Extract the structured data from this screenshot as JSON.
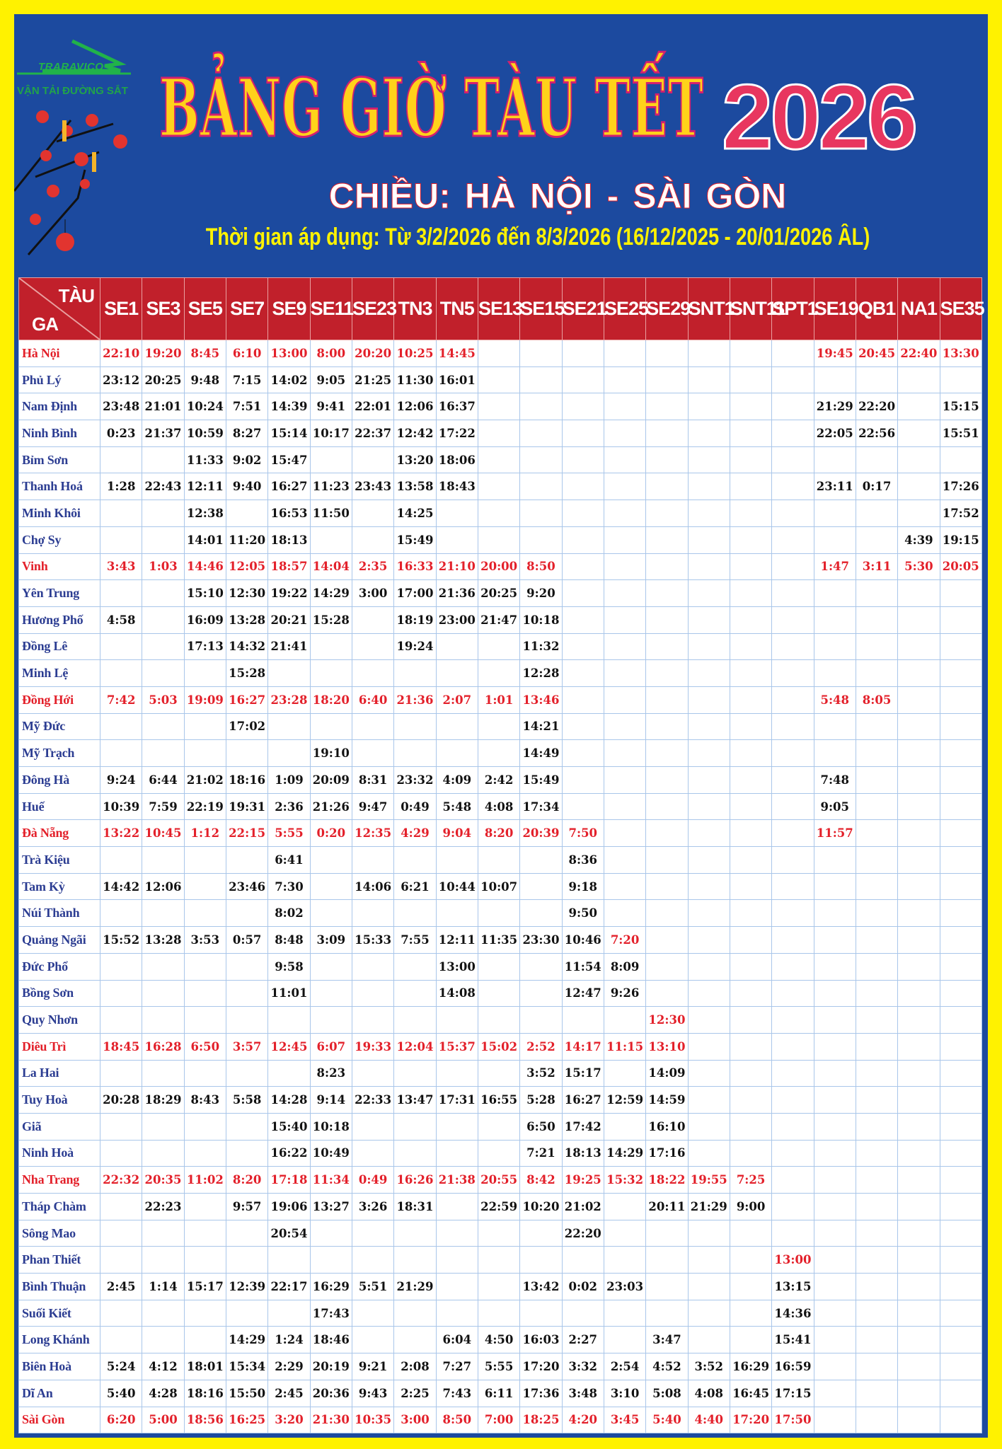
{
  "logo": {
    "brand": "TRARAVICO",
    "subtitle": "VẬN TẢI ĐƯỜNG SẮT"
  },
  "header": {
    "title": "BẢNG GIỜ TÀU TẾT",
    "year": "2026",
    "direction": "CHIỀU:  HÀ NỘI - SÀI GÒN",
    "period": "Thời gian áp dụng: Từ 3/2/2026  đến 8/3/2026 (16/12/2025 - 20/01/2026 ÂL)"
  },
  "colors": {
    "background": "#fff200",
    "panel": "#1c4a9f",
    "header_row": "#c1202b",
    "highlight_text": "#e3202a",
    "station_text": "#2c3d92"
  },
  "table": {
    "corner_top": "TÀU",
    "corner_bottom": "GA",
    "trains": [
      "SE1",
      "SE3",
      "SE5",
      "SE7",
      "SE9",
      "SE11",
      "SE23",
      "TN3",
      "TN5",
      "SE13",
      "SE15",
      "SE21",
      "SE25",
      "SE29",
      "SNT1",
      "SNT11",
      "SPT1",
      "SE19",
      "QB1",
      "NA1",
      "SE35"
    ],
    "stations": [
      {
        "name": "Hà Nội",
        "major": true,
        "times": [
          "22:10",
          "19:20",
          "8:45",
          "6:10",
          "13:00",
          "8:00",
          "20:20",
          "10:25",
          "14:45",
          "",
          "",
          "",
          "",
          "",
          "",
          "",
          "",
          "19:45",
          "20:45",
          "22:40",
          "13:30"
        ]
      },
      {
        "name": "Phủ Lý",
        "major": false,
        "times": [
          "23:12",
          "20:25",
          "9:48",
          "7:15",
          "14:02",
          "9:05",
          "21:25",
          "11:30",
          "16:01",
          "",
          "",
          "",
          "",
          "",
          "",
          "",
          "",
          "",
          "",
          "",
          ""
        ]
      },
      {
        "name": "Nam Định",
        "major": false,
        "times": [
          "23:48",
          "21:01",
          "10:24",
          "7:51",
          "14:39",
          "9:41",
          "22:01",
          "12:06",
          "16:37",
          "",
          "",
          "",
          "",
          "",
          "",
          "",
          "",
          "21:29",
          "22:20",
          "",
          "15:15"
        ]
      },
      {
        "name": "Ninh Bình",
        "major": false,
        "times": [
          "0:23",
          "21:37",
          "10:59",
          "8:27",
          "15:14",
          "10:17",
          "22:37",
          "12:42",
          "17:22",
          "",
          "",
          "",
          "",
          "",
          "",
          "",
          "",
          "22:05",
          "22:56",
          "",
          "15:51"
        ]
      },
      {
        "name": "Bỉm Sơn",
        "major": false,
        "times": [
          "",
          "",
          "11:33",
          "9:02",
          "15:47",
          "",
          "",
          "13:20",
          "18:06",
          "",
          "",
          "",
          "",
          "",
          "",
          "",
          "",
          "",
          "",
          "",
          ""
        ]
      },
      {
        "name": "Thanh Hoá",
        "major": false,
        "times": [
          "1:28",
          "22:43",
          "12:11",
          "9:40",
          "16:27",
          "11:23",
          "23:43",
          "13:58",
          "18:43",
          "",
          "",
          "",
          "",
          "",
          "",
          "",
          "",
          "23:11",
          "0:17",
          "",
          "17:26"
        ]
      },
      {
        "name": "Minh Khôi",
        "major": false,
        "times": [
          "",
          "",
          "12:38",
          "",
          "16:53",
          "11:50",
          "",
          "14:25",
          "",
          "",
          "",
          "",
          "",
          "",
          "",
          "",
          "",
          "",
          "",
          "",
          "17:52"
        ]
      },
      {
        "name": "Chợ Sy",
        "major": false,
        "times": [
          "",
          "",
          "14:01",
          "11:20",
          "18:13",
          "",
          "",
          "15:49",
          "",
          "",
          "",
          "",
          "",
          "",
          "",
          "",
          "",
          "",
          "",
          "4:39",
          "19:15"
        ]
      },
      {
        "name": "Vinh",
        "major": true,
        "times": [
          "3:43",
          "1:03",
          "14:46",
          "12:05",
          "18:57",
          "14:04",
          "2:35",
          "16:33",
          "21:10",
          "20:00",
          "8:50",
          "",
          "",
          "",
          "",
          "",
          "",
          "1:47",
          "3:11",
          "5:30",
          "20:05"
        ]
      },
      {
        "name": "Yên Trung",
        "major": false,
        "times": [
          "",
          "",
          "15:10",
          "12:30",
          "19:22",
          "14:29",
          "3:00",
          "17:00",
          "21:36",
          "20:25",
          "9:20",
          "",
          "",
          "",
          "",
          "",
          "",
          "",
          "",
          "",
          ""
        ]
      },
      {
        "name": "Hương Phố",
        "major": false,
        "times": [
          "4:58",
          "",
          "16:09",
          "13:28",
          "20:21",
          "15:28",
          "",
          "18:19",
          "23:00",
          "21:47",
          "10:18",
          "",
          "",
          "",
          "",
          "",
          "",
          "",
          "",
          "",
          ""
        ]
      },
      {
        "name": "Đồng Lê",
        "major": false,
        "times": [
          "",
          "",
          "17:13",
          "14:32",
          "21:41",
          "",
          "",
          "19:24",
          "",
          "",
          "11:32",
          "",
          "",
          "",
          "",
          "",
          "",
          "",
          "",
          "",
          ""
        ]
      },
      {
        "name": "Minh Lệ",
        "major": false,
        "times": [
          "",
          "",
          "",
          "15:28",
          "",
          "",
          "",
          "",
          "",
          "",
          "12:28",
          "",
          "",
          "",
          "",
          "",
          "",
          "",
          "",
          "",
          ""
        ]
      },
      {
        "name": "Đồng Hới",
        "major": true,
        "times": [
          "7:42",
          "5:03",
          "19:09",
          "16:27",
          "23:28",
          "18:20",
          "6:40",
          "21:36",
          "2:07",
          "1:01",
          "13:46",
          "",
          "",
          "",
          "",
          "",
          "",
          "5:48",
          "8:05",
          "",
          ""
        ]
      },
      {
        "name": "Mỹ Đức",
        "major": false,
        "times": [
          "",
          "",
          "",
          "17:02",
          "",
          "",
          "",
          "",
          "",
          "",
          "14:21",
          "",
          "",
          "",
          "",
          "",
          "",
          "",
          "",
          "",
          ""
        ]
      },
      {
        "name": "Mỹ Trạch",
        "major": false,
        "times": [
          "",
          "",
          "",
          "",
          "",
          "19:10",
          "",
          "",
          "",
          "",
          "14:49",
          "",
          "",
          "",
          "",
          "",
          "",
          "",
          "",
          "",
          ""
        ]
      },
      {
        "name": "Đông Hà",
        "major": false,
        "times": [
          "9:24",
          "6:44",
          "21:02",
          "18:16",
          "1:09",
          "20:09",
          "8:31",
          "23:32",
          "4:09",
          "2:42",
          "15:49",
          "",
          "",
          "",
          "",
          "",
          "",
          "7:48",
          "",
          "",
          ""
        ]
      },
      {
        "name": "Huế",
        "major": false,
        "times": [
          "10:39",
          "7:59",
          "22:19",
          "19:31",
          "2:36",
          "21:26",
          "9:47",
          "0:49",
          "5:48",
          "4:08",
          "17:34",
          "",
          "",
          "",
          "",
          "",
          "",
          "9:05",
          "",
          "",
          ""
        ]
      },
      {
        "name": "Đà Nẵng",
        "major": true,
        "times": [
          "13:22",
          "10:45",
          "1:12",
          "22:15",
          "5:55",
          "0:20",
          "12:35",
          "4:29",
          "9:04",
          "8:20",
          "20:39",
          "7:50",
          "",
          "",
          "",
          "",
          "",
          "11:57",
          "",
          "",
          ""
        ]
      },
      {
        "name": "Trà Kiệu",
        "major": false,
        "times": [
          "",
          "",
          "",
          "",
          "6:41",
          "",
          "",
          "",
          "",
          "",
          "",
          "8:36",
          "",
          "",
          "",
          "",
          "",
          "",
          "",
          "",
          ""
        ]
      },
      {
        "name": "Tam Kỳ",
        "major": false,
        "times": [
          "14:42",
          "12:06",
          "",
          "23:46",
          "7:30",
          "",
          "14:06",
          "6:21",
          "10:44",
          "10:07",
          "",
          "9:18",
          "",
          "",
          "",
          "",
          "",
          "",
          "",
          "",
          ""
        ]
      },
      {
        "name": "Núi Thành",
        "major": false,
        "times": [
          "",
          "",
          "",
          "",
          "8:02",
          "",
          "",
          "",
          "",
          "",
          "",
          "9:50",
          "",
          "",
          "",
          "",
          "",
          "",
          "",
          "",
          ""
        ]
      },
      {
        "name": "Quảng Ngãi",
        "major": false,
        "times": [
          "15:52",
          "13:28",
          "3:53",
          "0:57",
          "8:48",
          "3:09",
          "15:33",
          "7:55",
          "12:11",
          "11:35",
          "23:30",
          "10:46",
          "7:20",
          "",
          "",
          "",
          "",
          "",
          "",
          "",
          ""
        ]
      },
      {
        "name": "Đức Phổ",
        "major": false,
        "times": [
          "",
          "",
          "",
          "",
          "9:58",
          "",
          "",
          "",
          "13:00",
          "",
          "",
          "11:54",
          "8:09",
          "",
          "",
          "",
          "",
          "",
          "",
          "",
          ""
        ]
      },
      {
        "name": "Bồng Sơn",
        "major": false,
        "times": [
          "",
          "",
          "",
          "",
          "11:01",
          "",
          "",
          "",
          "14:08",
          "",
          "",
          "12:47",
          "9:26",
          "",
          "",
          "",
          "",
          "",
          "",
          "",
          ""
        ]
      },
      {
        "name": "Quy Nhơn",
        "major": false,
        "times": [
          "",
          "",
          "",
          "",
          "",
          "",
          "",
          "",
          "",
          "",
          "",
          "",
          "",
          "12:30",
          "",
          "",
          "",
          "",
          "",
          "",
          ""
        ]
      },
      {
        "name": "Diêu Trì",
        "major": true,
        "times": [
          "18:45",
          "16:28",
          "6:50",
          "3:57",
          "12:45",
          "6:07",
          "19:33",
          "12:04",
          "15:37",
          "15:02",
          "2:52",
          "14:17",
          "11:15",
          "13:10",
          "",
          "",
          "",
          "",
          "",
          "",
          ""
        ]
      },
      {
        "name": "La Hai",
        "major": false,
        "times": [
          "",
          "",
          "",
          "",
          "",
          "8:23",
          "",
          "",
          "",
          "",
          "3:52",
          "15:17",
          "",
          "14:09",
          "",
          "",
          "",
          "",
          "",
          "",
          ""
        ]
      },
      {
        "name": "Tuy Hoà",
        "major": false,
        "times": [
          "20:28",
          "18:29",
          "8:43",
          "5:58",
          "14:28",
          "9:14",
          "22:33",
          "13:47",
          "17:31",
          "16:55",
          "5:28",
          "16:27",
          "12:59",
          "14:59",
          "",
          "",
          "",
          "",
          "",
          "",
          ""
        ]
      },
      {
        "name": "Giã",
        "major": false,
        "times": [
          "",
          "",
          "",
          "",
          "15:40",
          "10:18",
          "",
          "",
          "",
          "",
          "6:50",
          "17:42",
          "",
          "16:10",
          "",
          "",
          "",
          "",
          "",
          "",
          ""
        ]
      },
      {
        "name": "Ninh Hoà",
        "major": false,
        "times": [
          "",
          "",
          "",
          "",
          "16:22",
          "10:49",
          "",
          "",
          "",
          "",
          "7:21",
          "18:13",
          "14:29",
          "17:16",
          "",
          "",
          "",
          "",
          "",
          "",
          ""
        ]
      },
      {
        "name": "Nha Trang",
        "major": true,
        "times": [
          "22:32",
          "20:35",
          "11:02",
          "8:20",
          "17:18",
          "11:34",
          "0:49",
          "16:26",
          "21:38",
          "20:55",
          "8:42",
          "19:25",
          "15:32",
          "18:22",
          "19:55",
          "7:25",
          "",
          "",
          "",
          "",
          ""
        ]
      },
      {
        "name": "Tháp Chàm",
        "major": false,
        "times": [
          "",
          "22:23",
          "",
          "9:57",
          "19:06",
          "13:27",
          "3:26",
          "18:31",
          "",
          "22:59",
          "10:20",
          "21:02",
          "",
          "20:11",
          "21:29",
          "9:00",
          "",
          "",
          "",
          "",
          ""
        ]
      },
      {
        "name": "Sông Mao",
        "major": false,
        "times": [
          "",
          "",
          "",
          "",
          "20:54",
          "",
          "",
          "",
          "",
          "",
          "",
          "22:20",
          "",
          "",
          "",
          "",
          "",
          "",
          "",
          "",
          ""
        ]
      },
      {
        "name": "Phan Thiết",
        "major": false,
        "times": [
          "",
          "",
          "",
          "",
          "",
          "",
          "",
          "",
          "",
          "",
          "",
          "",
          "",
          "",
          "",
          "",
          "13:00",
          "",
          "",
          "",
          ""
        ]
      },
      {
        "name": "Bình Thuận",
        "major": false,
        "times": [
          "2:45",
          "1:14",
          "15:17",
          "12:39",
          "22:17",
          "16:29",
          "5:51",
          "21:29",
          "",
          "",
          "13:42",
          "0:02",
          "23:03",
          "",
          "",
          "",
          "13:15",
          "",
          "",
          "",
          ""
        ]
      },
      {
        "name": "Suối Kiết",
        "major": false,
        "times": [
          "",
          "",
          "",
          "",
          "",
          "17:43",
          "",
          "",
          "",
          "",
          "",
          "",
          "",
          "",
          "",
          "",
          "14:36",
          "",
          "",
          "",
          ""
        ]
      },
      {
        "name": "Long Khánh",
        "major": false,
        "times": [
          "",
          "",
          "",
          "14:29",
          "1:24",
          "18:46",
          "",
          "",
          "6:04",
          "4:50",
          "16:03",
          "2:27",
          "",
          "3:47",
          "",
          "",
          "15:41",
          "",
          "",
          "",
          ""
        ]
      },
      {
        "name": "Biên Hoà",
        "major": false,
        "times": [
          "5:24",
          "4:12",
          "18:01",
          "15:34",
          "2:29",
          "20:19",
          "9:21",
          "2:08",
          "7:27",
          "5:55",
          "17:20",
          "3:32",
          "2:54",
          "4:52",
          "3:52",
          "16:29",
          "16:59",
          "",
          "",
          "",
          ""
        ]
      },
      {
        "name": "Dĩ An",
        "major": false,
        "times": [
          "5:40",
          "4:28",
          "18:16",
          "15:50",
          "2:45",
          "20:36",
          "9:43",
          "2:25",
          "7:43",
          "6:11",
          "17:36",
          "3:48",
          "3:10",
          "5:08",
          "4:08",
          "16:45",
          "17:15",
          "",
          "",
          "",
          ""
        ]
      },
      {
        "name": "Sài Gòn",
        "major": true,
        "times": [
          "6:20",
          "5:00",
          "18:56",
          "16:25",
          "3:20",
          "21:30",
          "10:35",
          "3:00",
          "8:50",
          "7:00",
          "18:25",
          "4:20",
          "3:45",
          "5:40",
          "4:40",
          "17:20",
          "17:50",
          "",
          "",
          "",
          ""
        ]
      }
    ]
  }
}
